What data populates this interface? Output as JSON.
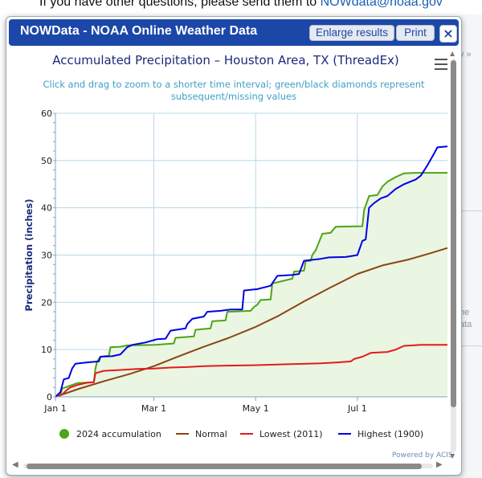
{
  "page": {
    "top_text": "If you have other questions, please send them to",
    "top_link": "NOWdata@noaa.gov",
    "right_fragments": [
      "v »",
      "he",
      "ata"
    ]
  },
  "dialog": {
    "title": "NOWData - NOAA Online Weather Data",
    "enlarge_label": "Enlarge results",
    "print_label": "Print",
    "close_label": "×"
  },
  "chart": {
    "title": "Accumulated Precipitation – Houston Area, TX (ThreadEx)",
    "subtitle": "Click and drag to zoom to a shorter time interval; green/black diamonds represent subsequent/missing values",
    "credit": "Powered by ACIS"
  },
  "colors": {
    "accumulation": "#4ca514",
    "normal": "#8b4513",
    "lowest": "#e41a1c",
    "highest": "#0000e6",
    "title": "#1c2a7a",
    "titlebar": "#1b47a8"
  },
  "chart_data": {
    "type": "line",
    "title": "Accumulated Precipitation – Houston Area, TX (ThreadEx)",
    "ylabel": "Precipitation (inches)",
    "xlabel": "",
    "x_unit": "day of year",
    "xlim": [
      1,
      236
    ],
    "ylim": [
      0,
      60
    ],
    "yticks": [
      0,
      10,
      20,
      30,
      40,
      50,
      60
    ],
    "xticks": [
      {
        "day": 1,
        "label": "Jan 1"
      },
      {
        "day": 60,
        "label": "Mar 1"
      },
      {
        "day": 121,
        "label": "May 1"
      },
      {
        "day": 182,
        "label": "Jul 1"
      }
    ],
    "grid": true,
    "legend_position": "bottom",
    "series": [
      {
        "name": "2024 accumulation",
        "color": "#4ca514",
        "area": true,
        "points": [
          [
            1,
            0
          ],
          [
            4,
            0.3
          ],
          [
            5,
            1.8
          ],
          [
            7,
            2
          ],
          [
            10,
            2.4
          ],
          [
            14,
            2.9
          ],
          [
            18,
            3
          ],
          [
            24,
            3.1
          ],
          [
            25,
            6
          ],
          [
            26,
            7.5
          ],
          [
            28,
            8.5
          ],
          [
            33,
            8.7
          ],
          [
            34,
            10.5
          ],
          [
            40,
            10.6
          ],
          [
            44,
            10.9
          ],
          [
            61,
            11
          ],
          [
            72,
            11.3
          ],
          [
            73,
            12.5
          ],
          [
            84,
            12.8
          ],
          [
            85,
            14.2
          ],
          [
            94,
            14.5
          ],
          [
            95,
            16
          ],
          [
            103,
            16.2
          ],
          [
            104,
            18
          ],
          [
            118,
            18.2
          ],
          [
            120,
            19
          ],
          [
            122,
            19.5
          ],
          [
            124,
            20.5
          ],
          [
            130,
            20.6
          ],
          [
            131,
            24
          ],
          [
            143,
            25
          ],
          [
            144,
            26.5
          ],
          [
            150,
            26.7
          ],
          [
            151,
            28.7
          ],
          [
            154,
            28.8
          ],
          [
            155,
            30
          ],
          [
            157,
            31
          ],
          [
            161,
            34.5
          ],
          [
            166,
            34.7
          ],
          [
            169,
            36
          ],
          [
            185,
            36.1
          ],
          [
            186,
            39.5
          ],
          [
            189,
            42.5
          ],
          [
            194,
            42.7
          ],
          [
            197,
            44.5
          ],
          [
            200,
            45.5
          ],
          [
            205,
            46.5
          ],
          [
            210,
            47.3
          ],
          [
            218,
            47.4
          ],
          [
            236,
            47.4
          ]
        ]
      },
      {
        "name": "Normal",
        "color": "#8b4513",
        "points": [
          [
            1,
            0
          ],
          [
            15,
            1.7
          ],
          [
            30,
            3.3
          ],
          [
            45,
            4.8
          ],
          [
            60,
            6.5
          ],
          [
            75,
            8.6
          ],
          [
            90,
            10.6
          ],
          [
            105,
            12.5
          ],
          [
            121,
            14.8
          ],
          [
            135,
            17.2
          ],
          [
            150,
            20.2
          ],
          [
            165,
            23
          ],
          [
            182,
            26
          ],
          [
            197,
            27.8
          ],
          [
            212,
            29
          ],
          [
            225,
            30.3
          ],
          [
            236,
            31.5
          ]
        ]
      },
      {
        "name": "Lowest (2011)",
        "color": "#e41a1c",
        "points": [
          [
            1,
            0
          ],
          [
            5,
            0.5
          ],
          [
            8,
            1.5
          ],
          [
            10,
            2
          ],
          [
            14,
            2.5
          ],
          [
            20,
            3
          ],
          [
            24,
            3.1
          ],
          [
            25,
            5
          ],
          [
            30,
            5.5
          ],
          [
            40,
            5.7
          ],
          [
            50,
            5.9
          ],
          [
            60,
            6
          ],
          [
            70,
            6.2
          ],
          [
            80,
            6.3
          ],
          [
            90,
            6.5
          ],
          [
            100,
            6.6
          ],
          [
            120,
            6.7
          ],
          [
            140,
            6.9
          ],
          [
            160,
            7.1
          ],
          [
            170,
            7.3
          ],
          [
            178,
            7.5
          ],
          [
            180,
            8
          ],
          [
            185,
            8.5
          ],
          [
            190,
            9.3
          ],
          [
            200,
            9.5
          ],
          [
            205,
            10
          ],
          [
            210,
            10.8
          ],
          [
            220,
            11
          ],
          [
            236,
            11
          ]
        ]
      },
      {
        "name": "Highest (1900)",
        "color": "#0000e6",
        "points": [
          [
            1,
            0
          ],
          [
            4,
            1
          ],
          [
            6,
            3.7
          ],
          [
            9,
            4
          ],
          [
            11,
            6
          ],
          [
            13,
            7
          ],
          [
            20,
            7.3
          ],
          [
            27,
            7.5
          ],
          [
            28,
            8.5
          ],
          [
            35,
            8.6
          ],
          [
            40,
            9
          ],
          [
            44,
            10.5
          ],
          [
            47,
            11
          ],
          [
            55,
            11.5
          ],
          [
            60,
            12
          ],
          [
            62,
            12.2
          ],
          [
            67,
            12.3
          ],
          [
            70,
            14
          ],
          [
            79,
            14.5
          ],
          [
            80,
            15.4
          ],
          [
            83,
            16.5
          ],
          [
            90,
            17
          ],
          [
            92,
            18
          ],
          [
            100,
            18.2
          ],
          [
            106,
            18.5
          ],
          [
            113,
            18.5
          ],
          [
            114,
            22.5
          ],
          [
            122,
            22.8
          ],
          [
            130,
            23.5
          ],
          [
            134,
            25.6
          ],
          [
            143,
            25.8
          ],
          [
            147,
            26
          ],
          [
            150,
            28.8
          ],
          [
            160,
            29.2
          ],
          [
            165,
            29.5
          ],
          [
            175,
            29.6
          ],
          [
            182,
            30
          ],
          [
            185,
            33
          ],
          [
            187,
            33.3
          ],
          [
            189,
            40
          ],
          [
            192,
            41
          ],
          [
            196,
            42
          ],
          [
            200,
            42.5
          ],
          [
            205,
            44
          ],
          [
            210,
            45
          ],
          [
            217,
            46
          ],
          [
            220,
            46.8
          ],
          [
            224,
            49
          ],
          [
            228,
            51.5
          ],
          [
            230,
            52.8
          ],
          [
            236,
            53
          ]
        ]
      }
    ]
  }
}
